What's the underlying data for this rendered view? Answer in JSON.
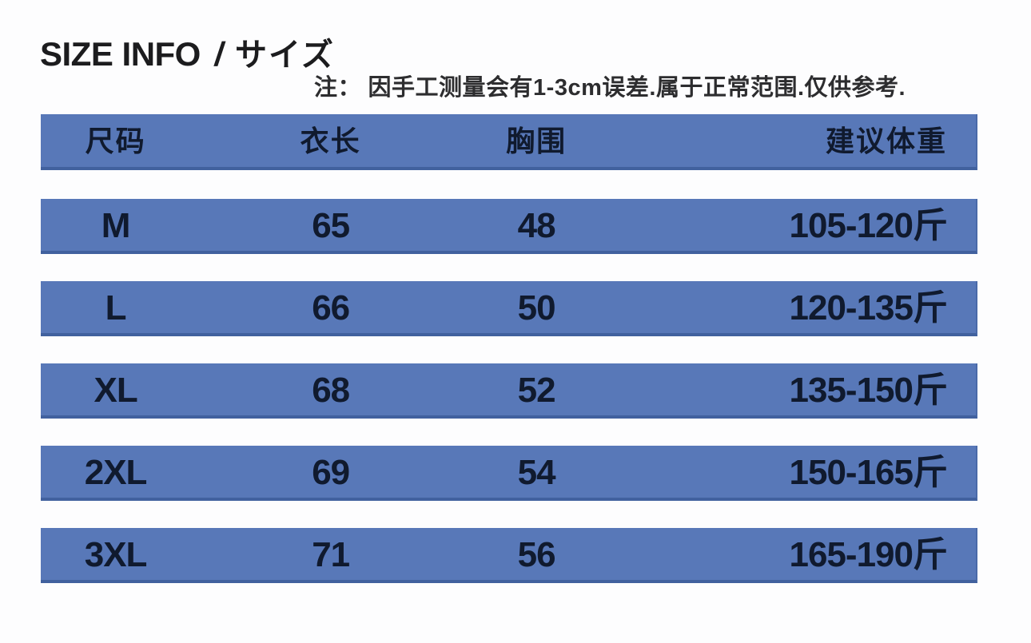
{
  "header": {
    "title_en": "SIZE INFO",
    "title_sep": "/",
    "title_ja": "サイズ",
    "note": "注： 因手工测量会有1-3cm误差.属于正常范围.仅供参考."
  },
  "colors": {
    "row_blue": "#5878b8",
    "row_border_blue": "#41619e",
    "text_dark": "#101a2e"
  },
  "chart_data": {
    "type": "table",
    "title": "SIZE INFO / サイズ",
    "note": "注： 因手工测量会有1-3cm误差.属于正常范围.仅供参考.",
    "columns": [
      "尺码",
      "衣长",
      "胸围",
      "建议体重"
    ],
    "rows": [
      [
        "M",
        "65",
        "48",
        "105-120斤"
      ],
      [
        "L",
        "66",
        "50",
        "120-135斤"
      ],
      [
        "XL",
        "68",
        "52",
        "135-150斤"
      ],
      [
        "2XL",
        "69",
        "54",
        "150-165斤"
      ],
      [
        "3XL",
        "71",
        "56",
        "165-190斤"
      ]
    ]
  }
}
